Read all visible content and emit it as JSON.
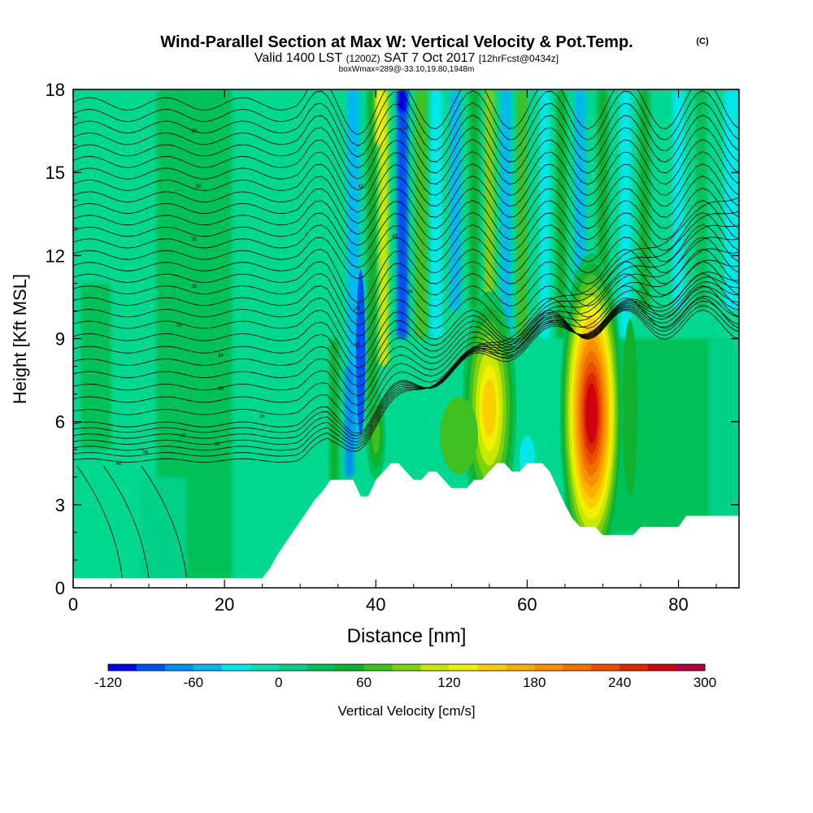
{
  "title": {
    "main": "Wind-Parallel Section at Max W: Vertical Velocity & Pot.Temp.",
    "copyright": "(C)",
    "valid_prefix": "Valid 1400 LST",
    "valid_utc": "(1200Z)",
    "valid_date": "SAT 7 Oct 2017",
    "forecast": "[12hrFcst@0434z]",
    "box_info": "boxWmax=289@-33.10,19.80,1948m"
  },
  "chart_data": {
    "type": "heatmap",
    "xlabel": "Distance [nm]",
    "ylabel": "Height [Kft MSL]",
    "xlim": [
      0,
      88
    ],
    "ylim": [
      0,
      18
    ],
    "xticks": [
      "0",
      "20",
      "40",
      "60",
      "80"
    ],
    "yticks": [
      "0",
      "3",
      "6",
      "9",
      "12",
      "15",
      "18"
    ],
    "colorbar": {
      "label": "Vertical Velocity [cm/s]",
      "ticks": [
        "-120",
        "-60",
        "0",
        "60",
        "120",
        "180",
        "240",
        "300"
      ],
      "levels": [
        -120,
        -100,
        -80,
        -60,
        -40,
        -20,
        0,
        20,
        40,
        60,
        80,
        100,
        120,
        140,
        160,
        180,
        200,
        220,
        240,
        260,
        280,
        300
      ],
      "colors": [
        "#0000f0",
        "#0050f5",
        "#0090f0",
        "#00b8f0",
        "#00e8e8",
        "#00e0b0",
        "#00d088",
        "#00c058",
        "#10b030",
        "#40c020",
        "#80d010",
        "#c8e800",
        "#f0f000",
        "#f8d000",
        "#f8b000",
        "#f89000",
        "#f07000",
        "#e85000",
        "#e02800",
        "#d00010",
        "#b00040"
      ]
    },
    "terrain_profile": [
      [
        0,
        0.35
      ],
      [
        25,
        0.35
      ],
      [
        26,
        0.7
      ],
      [
        27,
        1.2
      ],
      [
        28,
        1.6
      ],
      [
        29,
        2.0
      ],
      [
        30,
        2.4
      ],
      [
        31,
        2.8
      ],
      [
        32,
        3.2
      ],
      [
        33,
        3.5
      ],
      [
        34,
        3.9
      ],
      [
        37,
        3.9
      ],
      [
        38,
        3.3
      ],
      [
        39,
        3.3
      ],
      [
        40,
        3.9
      ],
      [
        41,
        4.2
      ],
      [
        42,
        4.5
      ],
      [
        43,
        4.5
      ],
      [
        44,
        4.2
      ],
      [
        45,
        3.9
      ],
      [
        46,
        3.9
      ],
      [
        47,
        4.2
      ],
      [
        48,
        4.2
      ],
      [
        49,
        3.9
      ],
      [
        50,
        3.6
      ],
      [
        52,
        3.6
      ],
      [
        53,
        3.9
      ],
      [
        54,
        3.9
      ],
      [
        55,
        4.2
      ],
      [
        56,
        4.5
      ],
      [
        57,
        4.5
      ],
      [
        58,
        4.2
      ],
      [
        59,
        4.2
      ],
      [
        60,
        4.5
      ],
      [
        62,
        4.5
      ],
      [
        63,
        4.2
      ],
      [
        64,
        3.6
      ],
      [
        65,
        3.0
      ],
      [
        66,
        2.5
      ],
      [
        67,
        2.2
      ],
      [
        69,
        2.2
      ],
      [
        70,
        1.9
      ],
      [
        74,
        1.9
      ],
      [
        75,
        2.2
      ],
      [
        80,
        2.2
      ],
      [
        81,
        2.6
      ],
      [
        88,
        2.6
      ]
    ],
    "updrafts": [
      {
        "x": 68.5,
        "y": 6.3,
        "w_cms": 289
      },
      {
        "x": 55,
        "y": 6.5,
        "w_cms": 150
      },
      {
        "x": 40,
        "y": 5.5,
        "w_cms": 80
      }
    ],
    "downdrafts": [
      {
        "x": 37.5,
        "y": 8.0,
        "w_cms": -80
      },
      {
        "x": 44,
        "y": 17.5,
        "w_cms": -100
      }
    ],
    "theta_contour_labels": [
      "29",
      "30",
      "31",
      "32",
      "33",
      "34",
      "35",
      "36",
      "37",
      "38",
      "39",
      "40",
      "41",
      "42",
      "43",
      "44"
    ]
  }
}
